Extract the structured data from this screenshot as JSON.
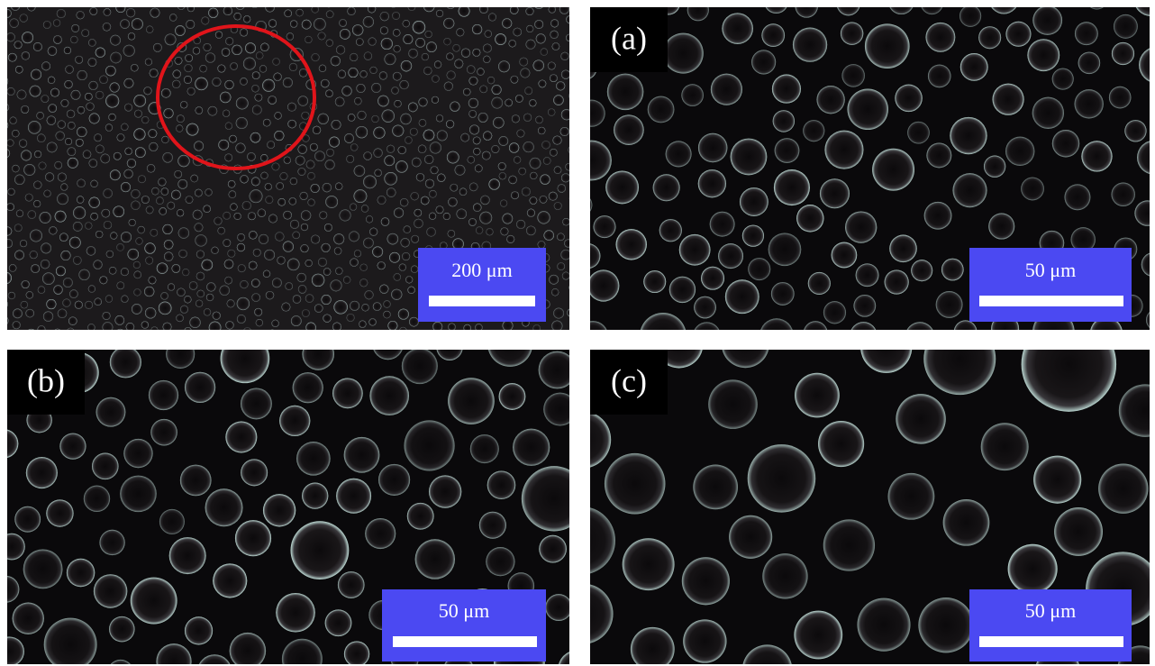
{
  "panels": [
    {
      "scale_bar": "200 μm"
    },
    {
      "label": "(a)",
      "scale_bar": "50 μm"
    },
    {
      "label": "(b)",
      "scale_bar": "50 μm"
    },
    {
      "label": "(c)",
      "scale_bar": "50 μm"
    }
  ]
}
